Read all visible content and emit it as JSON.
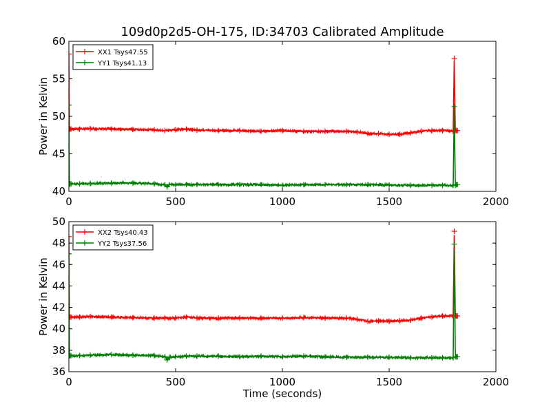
{
  "chart_data": [
    {
      "type": "line",
      "title": "109d0p2d5-OH-175, ID:34703 Calibrated Amplitude",
      "xlabel": "",
      "ylabel": "Power in Kelvin",
      "xlim": [
        0,
        2000
      ],
      "ylim": [
        40,
        60
      ],
      "xticks": [
        "0",
        "500",
        "1000",
        "1500",
        "2000"
      ],
      "yticks": [
        "40",
        "45",
        "50",
        "55",
        "60"
      ],
      "grid": false,
      "legend_position": "top-left",
      "series": [
        {
          "name": "XX1 Tsys47.55",
          "color": "#ff0000",
          "marker": "+",
          "x": [
            0,
            2,
            5,
            10,
            50,
            100,
            200,
            300,
            400,
            450,
            500,
            550,
            600,
            700,
            800,
            900,
            1000,
            1100,
            1200,
            1300,
            1350,
            1400,
            1450,
            1500,
            1550,
            1600,
            1650,
            1700,
            1750,
            1800,
            1805,
            1810,
            1815,
            1820
          ],
          "y": [
            58.3,
            48.3,
            48.3,
            48.3,
            48.3,
            48.35,
            48.3,
            48.25,
            48.2,
            48.1,
            48.2,
            48.3,
            48.15,
            48.1,
            48.1,
            48.0,
            48.1,
            48.0,
            48.0,
            48.0,
            47.9,
            47.7,
            47.7,
            47.6,
            47.6,
            47.8,
            48.0,
            48.1,
            48.1,
            48.0,
            57.7,
            48.1,
            48.1,
            48.1
          ]
        },
        {
          "name": "YY1 Tsys41.13",
          "color": "#008000",
          "marker": "+",
          "x": [
            0,
            2,
            5,
            10,
            50,
            100,
            200,
            300,
            400,
            450,
            460,
            470,
            500,
            550,
            600,
            700,
            800,
            900,
            1000,
            1100,
            1200,
            1300,
            1400,
            1500,
            1600,
            1700,
            1750,
            1800,
            1805,
            1810,
            1815,
            1820
          ],
          "y": [
            51.5,
            41.0,
            41.0,
            41.0,
            41.0,
            41.05,
            41.1,
            41.1,
            41.0,
            40.9,
            40.6,
            40.9,
            40.9,
            40.9,
            40.9,
            40.9,
            40.9,
            40.9,
            40.8,
            40.9,
            40.9,
            40.9,
            40.9,
            40.85,
            40.8,
            40.8,
            40.8,
            40.8,
            51.3,
            40.8,
            40.9,
            40.9
          ]
        }
      ]
    },
    {
      "type": "line",
      "title": "",
      "xlabel": "Time (seconds)",
      "ylabel": "Power in Kelvin",
      "xlim": [
        0,
        2000
      ],
      "ylim": [
        36,
        50
      ],
      "xticks": [
        "0",
        "500",
        "1000",
        "1500",
        "2000"
      ],
      "yticks": [
        "36",
        "38",
        "40",
        "42",
        "44",
        "46",
        "48",
        "50"
      ],
      "grid": false,
      "legend_position": "top-left",
      "series": [
        {
          "name": "XX2 Tsys40.43",
          "color": "#ff0000",
          "marker": "+",
          "x": [
            0,
            2,
            5,
            10,
            50,
            100,
            200,
            300,
            400,
            450,
            500,
            550,
            600,
            700,
            800,
            900,
            1000,
            1100,
            1200,
            1300,
            1350,
            1400,
            1450,
            1500,
            1550,
            1600,
            1650,
            1700,
            1750,
            1800,
            1805,
            1810,
            1815,
            1820
          ],
          "y": [
            48.6,
            41.1,
            41.1,
            41.1,
            41.1,
            41.15,
            41.1,
            41.05,
            41.0,
            41.0,
            41.0,
            41.1,
            41.0,
            41.0,
            41.0,
            41.0,
            41.0,
            41.05,
            41.0,
            41.0,
            40.9,
            40.7,
            40.75,
            40.7,
            40.75,
            40.8,
            41.0,
            41.1,
            41.2,
            41.2,
            49.1,
            41.2,
            41.2,
            41.2
          ]
        },
        {
          "name": "YY2 Tsys37.56",
          "color": "#008000",
          "marker": "+",
          "x": [
            0,
            2,
            5,
            10,
            50,
            100,
            200,
            300,
            400,
            450,
            460,
            470,
            500,
            550,
            600,
            700,
            800,
            900,
            1000,
            1100,
            1200,
            1300,
            1400,
            1500,
            1600,
            1700,
            1750,
            1800,
            1805,
            1810,
            1815,
            1820
          ],
          "y": [
            47.0,
            37.5,
            37.5,
            37.5,
            37.5,
            37.55,
            37.6,
            37.55,
            37.5,
            37.4,
            37.1,
            37.35,
            37.4,
            37.45,
            37.45,
            37.45,
            37.4,
            37.45,
            37.4,
            37.45,
            37.4,
            37.35,
            37.35,
            37.35,
            37.3,
            37.3,
            37.3,
            37.3,
            47.9,
            37.4,
            37.4,
            37.4
          ]
        }
      ]
    }
  ]
}
